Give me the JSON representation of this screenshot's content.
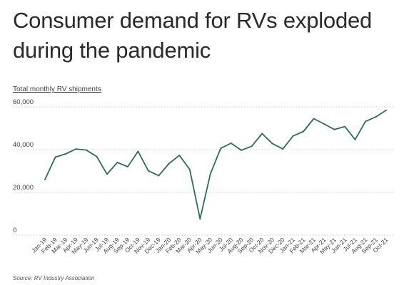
{
  "title": "Consumer demand for RVs exploded during the pandemic",
  "subtitle": "Total monthly RV shipments",
  "source": "Source:  RV Industry Association",
  "colors": {
    "line": "#2e6b5e",
    "grid": "#d6d6d6",
    "tick_text": "#444444"
  },
  "chart_data": {
    "type": "line",
    "title": "Consumer demand for RVs exploded during the pandemic",
    "ylabel": "Total monthly RV shipments",
    "ylim": [
      0,
      60000
    ],
    "yticks": [
      0,
      20000,
      40000,
      60000
    ],
    "ytick_labels": [
      "0",
      "20,000",
      "40,000",
      "60,000"
    ],
    "grid": "horizontal dashed",
    "categories": [
      "Jan-19",
      "Feb-19",
      "Mar-19",
      "Apr-19",
      "May-19",
      "Jun-19",
      "Jul-19",
      "Aug-19",
      "Sep-19",
      "Oct-19",
      "Nov-19",
      "Dec-19",
      "Jan-20",
      "Feb-20",
      "Mar-20",
      "Apr-20",
      "May-20",
      "Jun-20",
      "Jul-20",
      "Aug-20",
      "Sep-20",
      "Oct-20",
      "Nov-20",
      "Dec-20",
      "Jan-21",
      "Feb-21",
      "Mar-21",
      "Apr-21",
      "May-21",
      "Jun-21",
      "Jul-21",
      "Aug-21",
      "Sep-21",
      "Oct-21"
    ],
    "values": [
      26000,
      36500,
      38000,
      40300,
      39800,
      36800,
      28500,
      34000,
      32000,
      39200,
      30100,
      27800,
      33500,
      37300,
      30700,
      7600,
      28700,
      40600,
      43000,
      39700,
      41600,
      47500,
      42800,
      40300,
      46400,
      48500,
      54500,
      52000,
      49400,
      50800,
      44700,
      53200,
      55300,
      58400
    ]
  }
}
